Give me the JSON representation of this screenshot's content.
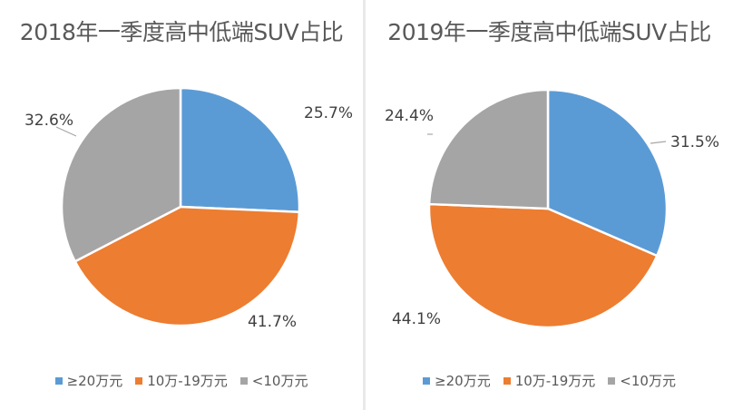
{
  "legend": {
    "items": [
      {
        "label": "≥20万元",
        "color": "#5b9bd5"
      },
      {
        "label": "10万-19万元",
        "color": "#ed7d31"
      },
      {
        "label": "<10万元",
        "color": "#a5a5a5"
      }
    ]
  },
  "chart_data": [
    {
      "type": "pie",
      "title": "2018年一季度高中低端SUV占比",
      "categories": [
        "≥20万元",
        "10万-19万元",
        "<10万元"
      ],
      "values": [
        25.7,
        41.7,
        32.6
      ],
      "labels": [
        "25.7%",
        "41.7%",
        "32.6%"
      ],
      "colors": [
        "#5b9bd5",
        "#ed7d31",
        "#a5a5a5"
      ],
      "legend": "bottom"
    },
    {
      "type": "pie",
      "title": "2019年一季度高中低端SUV占比",
      "categories": [
        "≥20万元",
        "10万-19万元",
        "<10万元"
      ],
      "values": [
        31.5,
        44.1,
        24.4
      ],
      "labels": [
        "31.5%",
        "44.1%",
        "24.4%"
      ],
      "colors": [
        "#5b9bd5",
        "#ed7d31",
        "#a5a5a5"
      ],
      "legend": "bottom"
    }
  ]
}
